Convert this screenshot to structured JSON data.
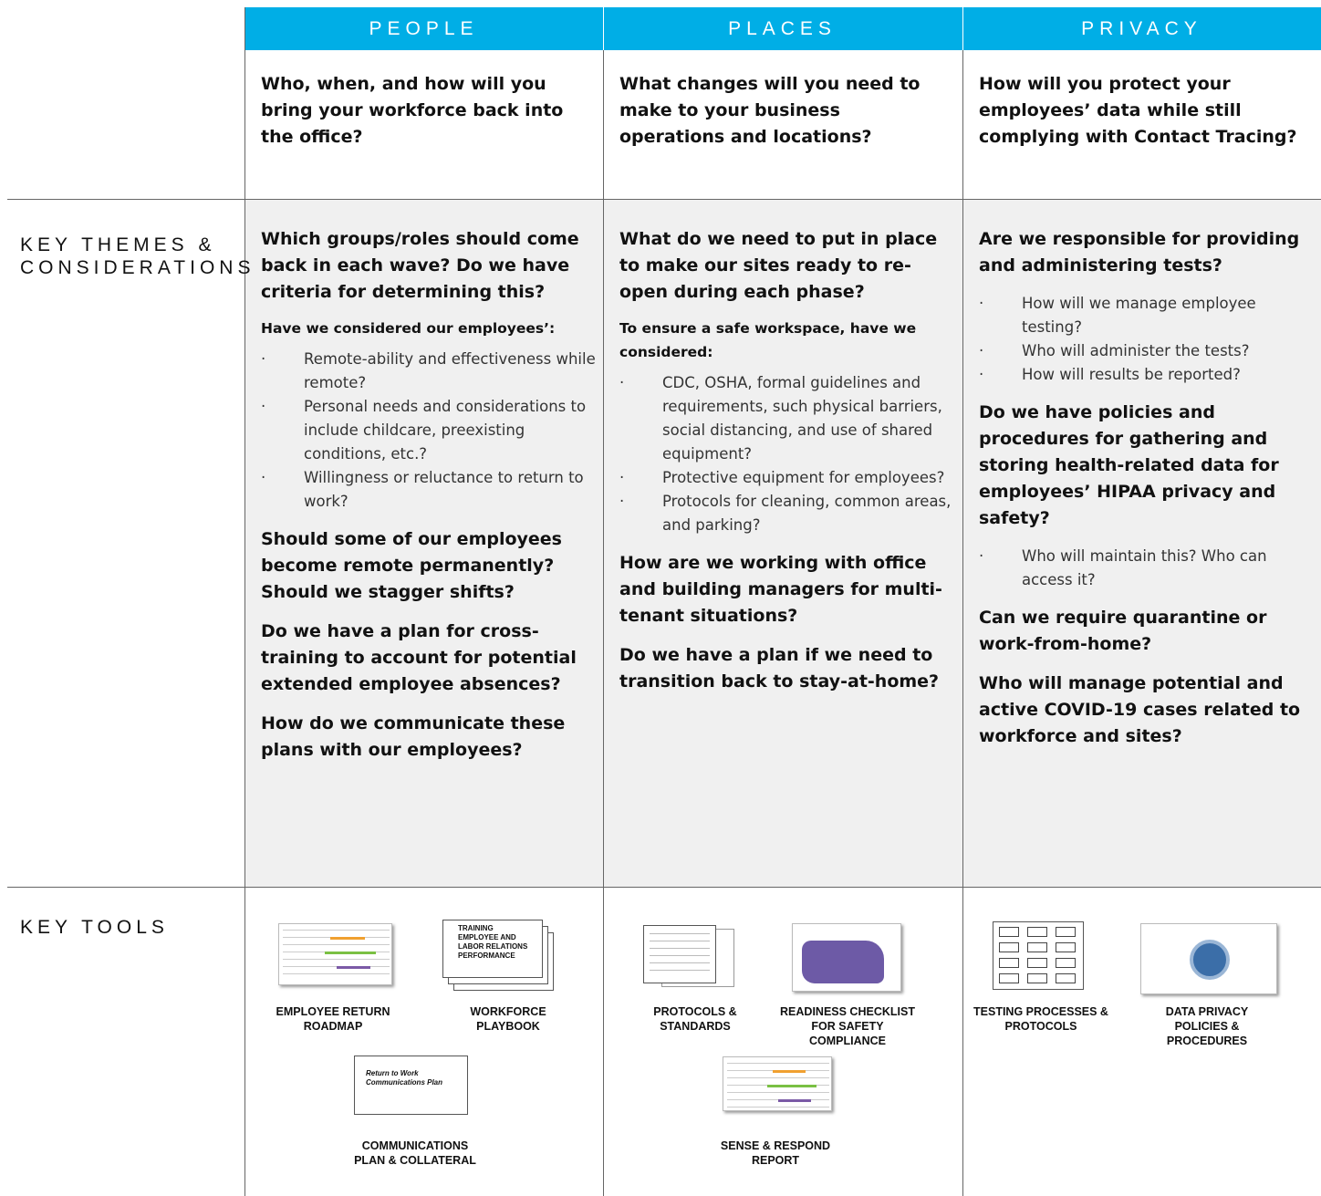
{
  "row_labels": {
    "themes": [
      "KEY THEMES &",
      "CONSIDERATIONS"
    ],
    "tools": "KEY TOOLS"
  },
  "columns": [
    {
      "header": "PEOPLE",
      "question": "Who, when, and how will you bring your workforce back into the office?",
      "themes": [
        {
          "q": "Which groups/roles should come back in each wave? Do we have criteria for determining this?"
        },
        {
          "lead": "Have we considered our employees’:"
        },
        {
          "bullets": [
            "Remote-ability and effectiveness while remote?",
            "Personal needs and considerations to include childcare, preexisting conditions, etc.?",
            "Willingness or reluctance to return to work?"
          ]
        },
        {
          "q": "Should some of our employees become remote permanently? Should we stagger shifts?"
        },
        {
          "q": "Do we have a plan for cross-training to account for potential extended employee absences?"
        },
        {
          "q": "How do we communicate these plans with our employees?"
        }
      ],
      "tools": [
        {
          "label": "EMPLOYEE RETURN ROADMAP"
        },
        {
          "label": "WORKFORCE PLAYBOOK",
          "items": [
            "TRAINING",
            "EMPLOYEE AND LABOR RELATIONS",
            "PERFORMANCE"
          ]
        },
        {
          "label": "COMMUNICATIONS PLAN & COLLATERAL",
          "items": [
            "Return to Work Communications Plan"
          ]
        }
      ]
    },
    {
      "header": "PLACES",
      "question": "What changes will you need to make to your business operations and locations?",
      "themes": [
        {
          "q": "What do we need to put in place to make our sites ready to re-open during each phase?"
        },
        {
          "lead": "To ensure a safe workspace, have we considered:"
        },
        {
          "bullets": [
            "CDC, OSHA, formal guidelines and requirements, such physical barriers, social distancing, and use of shared equipment?",
            "Protective equipment for employees?",
            "Protocols for cleaning, common areas, and parking?"
          ]
        },
        {
          "q": "How are we working with office and building managers for multi-tenant situations?"
        },
        {
          "q": "Do we have a plan if we need to transition back to stay-at-home?"
        }
      ],
      "tools": [
        {
          "label": "PROTOCOLS & STANDARDS"
        },
        {
          "label": "READINESS CHECKLIST FOR SAFETY COMPLIANCE"
        },
        {
          "label": "SENSE & RESPOND REPORT"
        }
      ]
    },
    {
      "header": "PRIVACY",
      "question": "How will you protect your employees’ data while still complying with Contact Tracing?",
      "themes": [
        {
          "q": "Are we responsible for providing and administering tests?"
        },
        {
          "bullets": [
            "How will we manage employee testing?",
            "Who will administer the tests?",
            "How will results be reported?"
          ]
        },
        {
          "q": "Do we have policies and procedures for gathering and storing health-related data for employees’ HIPAA privacy and safety?"
        },
        {
          "bullets": [
            "Who will maintain this? Who can access it?"
          ]
        },
        {
          "q": "Can we require quarantine or work-from-home?"
        },
        {
          "q": "Who will manage potential and active COVID-19 cases related to workforce and sites?"
        }
      ],
      "tools": [
        {
          "label": "TESTING PROCESSES & PROTOCOLS"
        },
        {
          "label": "DATA PRIVACY POLICIES & PROCEDURES"
        }
      ]
    }
  ]
}
